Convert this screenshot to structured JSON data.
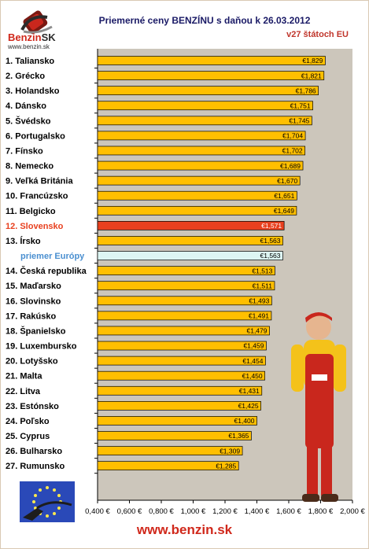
{
  "header": {
    "logo_brand": "Benzin",
    "logo_suffix": "SK",
    "logo_url": "www.benzin.sk",
    "title": "Priemerné ceny BENZÍNU s daňou k 26.03.2012",
    "subtitle": "v27 štátoch EU"
  },
  "footer": {
    "url": "www.benzin.sk"
  },
  "colors": {
    "bar": "#ffbf00",
    "highlight_bar": "#e8401f",
    "highlight_label": "#e8401f",
    "average_bar": "#ddf6f3",
    "average_label": "#4a8fd0",
    "plot_bg": "#ccc6bb",
    "title": "#1a1a66",
    "accent": "#d0281b"
  },
  "icons": {
    "logo": "fuel-nozzle-logo-icon",
    "eu_flag": "eu-flag-nozzle-icon",
    "mascot": "gas-attendant-mascot-icon"
  },
  "chart_data": {
    "type": "bar",
    "orientation": "horizontal",
    "title": "Priemerné ceny BENZÍNU s daňou k 26.03.2012",
    "subtitle": "v27 štátoch EU",
    "xlim": [
      0.4,
      2.0
    ],
    "x_ticks": [
      "0,400 €",
      "0,600 €",
      "0,800 €",
      "1,000 €",
      "1,200 €",
      "1,400 €",
      "1,600 €",
      "1,800 €",
      "2,000 €"
    ],
    "x_tick_values": [
      0.4,
      0.6,
      0.8,
      1.0,
      1.2,
      1.4,
      1.6,
      1.8,
      2.0
    ],
    "grid": true,
    "categories": [
      "1. Taliansko",
      "2. Grécko",
      "3. Holandsko",
      "4. Dánsko",
      "5. Švédsko",
      "6. Portugalsko",
      "7. Fínsko",
      "8. Nemecko",
      "9. Veľká Británia",
      "10. Francúzsko",
      "11. Belgicko",
      "12. Slovensko",
      "13. Írsko",
      "priemer Európy",
      "14. Česká republika",
      "15. Maďarsko",
      "16. Slovinsko",
      "17. Rakúsko",
      "18. Španielsko",
      "19. Luxembursko",
      "20. Lotyšsko",
      "21. Malta",
      "22. Litva",
      "23. Estónsko",
      "24. Poľsko",
      "25. Cyprus",
      "26. Bulharsko",
      "27. Rumunsko"
    ],
    "values": [
      1.829,
      1.821,
      1.786,
      1.751,
      1.745,
      1.704,
      1.702,
      1.689,
      1.67,
      1.651,
      1.649,
      1.571,
      1.563,
      1.563,
      1.513,
      1.511,
      1.493,
      1.491,
      1.479,
      1.459,
      1.454,
      1.45,
      1.431,
      1.425,
      1.4,
      1.365,
      1.309,
      1.285
    ],
    "value_labels": [
      "€1,829",
      "€1,821",
      "€1,786",
      "€1,751",
      "€1,745",
      "€1,704",
      "€1,702",
      "€1,689",
      "€1,670",
      "€1,651",
      "€1,649",
      "€1,571",
      "€1,563",
      "€1,563",
      "€1,513",
      "€1,511",
      "€1,493",
      "€1,491",
      "€1,479",
      "€1,459",
      "€1,454",
      "€1,450",
      "€1,431",
      "€1,425",
      "€1,400",
      "€1,365",
      "€1,309",
      "€1,285"
    ],
    "highlight": [
      "12. Slovensko"
    ],
    "average": [
      "priemer Európy"
    ]
  }
}
